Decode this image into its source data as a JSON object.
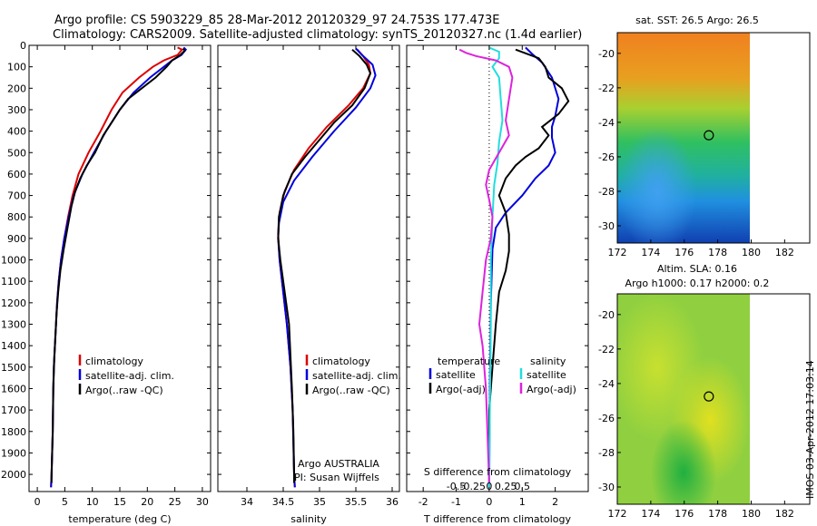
{
  "header": {
    "title_line1": "Argo profile: CS 5903229_85 28-Mar-2012 20120329_97 24.753S 177.473E",
    "title_line2": "Climatology: CARS2009. Satellite-adjusted climatology: synTS_20120327.nc (1.4d earlier)"
  },
  "colors": {
    "climatology": "#dd0000",
    "satellite": "#0000dd",
    "argo": "#000000",
    "salinity_satellite": "#22dddd",
    "salinity_argo": "#dd22dd"
  },
  "chart_data": [
    {
      "id": "temperature",
      "type": "line",
      "xlabel": "temperature (deg C)",
      "ylabel": "",
      "xlim": [
        -1.5,
        31.5
      ],
      "ylim": [
        2080,
        0
      ],
      "xticks": [
        "0",
        "5",
        "10",
        "15",
        "20",
        "25",
        "30"
      ],
      "yticks": [
        "0",
        "100",
        "200",
        "300",
        "400",
        "500",
        "600",
        "700",
        "800",
        "900",
        "1000",
        "1100",
        "1200",
        "1300",
        "1400",
        "1500",
        "1600",
        "1700",
        "1800",
        "1900",
        "2000"
      ],
      "legend": {
        "position": "center",
        "entries": [
          "climatology",
          "satellite-adj. clim.",
          "Argo(..raw -QC)"
        ]
      },
      "series": [
        {
          "name": "climatology",
          "color_key": "climatology",
          "points": [
            [
              25.5,
              10
            ],
            [
              26.3,
              20
            ],
            [
              25.5,
              45
            ],
            [
              23,
              70
            ],
            [
              21,
              100
            ],
            [
              18.5,
              150
            ],
            [
              15.5,
              220
            ],
            [
              13.5,
              300
            ],
            [
              11.5,
              400
            ],
            [
              9.3,
              500
            ],
            [
              7.5,
              600
            ],
            [
              6.4,
              700
            ],
            [
              5.6,
              800
            ],
            [
              4.9,
              900
            ],
            [
              4.3,
              1000
            ],
            [
              3.9,
              1100
            ],
            [
              3.6,
              1200
            ],
            [
              3.4,
              1300
            ],
            [
              3.2,
              1400
            ],
            [
              3,
              1500
            ],
            [
              2.9,
              1600
            ],
            [
              2.8,
              1800
            ],
            [
              2.6,
              2000
            ],
            [
              2.5,
              2060
            ]
          ]
        },
        {
          "name": "satellite-adj. clim.",
          "color_key": "satellite",
          "points": [
            [
              26.6,
              10
            ],
            [
              27,
              20
            ],
            [
              26.2,
              45
            ],
            [
              24.5,
              70
            ],
            [
              23,
              100
            ],
            [
              20.5,
              150
            ],
            [
              17.5,
              220
            ],
            [
              15,
              300
            ],
            [
              12.5,
              400
            ],
            [
              10.3,
              500
            ],
            [
              8.2,
              600
            ],
            [
              6.6,
              700
            ],
            [
              5.7,
              800
            ],
            [
              4.9,
              900
            ],
            [
              4.3,
              1000
            ],
            [
              3.9,
              1100
            ],
            [
              3.6,
              1200
            ],
            [
              3.4,
              1300
            ],
            [
              3.2,
              1400
            ],
            [
              3,
              1500
            ],
            [
              2.9,
              1600
            ],
            [
              2.8,
              1800
            ],
            [
              2.6,
              2000
            ],
            [
              2.5,
              2060
            ]
          ]
        },
        {
          "name": "Argo(..raw -QC)",
          "color_key": "argo",
          "points": [
            [
              26.5,
              15
            ],
            [
              26.8,
              25
            ],
            [
              26,
              45
            ],
            [
              24.5,
              70
            ],
            [
              23.5,
              100
            ],
            [
              21.5,
              150
            ],
            [
              19,
              200
            ],
            [
              16.5,
              250
            ],
            [
              15,
              300
            ],
            [
              13.5,
              360
            ],
            [
              12,
              420
            ],
            [
              10.5,
              500
            ],
            [
              9,
              560
            ],
            [
              7.8,
              620
            ],
            [
              6.9,
              680
            ],
            [
              6.2,
              750
            ],
            [
              5.5,
              850
            ],
            [
              4.8,
              950
            ],
            [
              4.2,
              1050
            ],
            [
              3.8,
              1150
            ],
            [
              3.5,
              1250
            ],
            [
              3.3,
              1350
            ],
            [
              3.1,
              1450
            ],
            [
              2.9,
              1600
            ],
            [
              2.8,
              1800
            ],
            [
              2.6,
              2000
            ],
            [
              2.6,
              2040
            ]
          ]
        }
      ]
    },
    {
      "id": "salinity",
      "type": "line",
      "xlabel": "salinity",
      "xlim": [
        33.6,
        36.1
      ],
      "ylim": [
        2080,
        0
      ],
      "xticks": [
        "34",
        "34.5",
        "35",
        "35.5",
        "36"
      ],
      "legend": {
        "position": "center",
        "entries": [
          "climatology",
          "satellite-adj. clim.",
          "Argo(..raw -QC)"
        ]
      },
      "annotation": [
        "Argo AUSTRALIA",
        "PI: Susan Wijffels"
      ],
      "series": [
        {
          "name": "climatology",
          "color_key": "climatology",
          "points": [
            [
              35.52,
              20
            ],
            [
              35.6,
              50
            ],
            [
              35.68,
              90
            ],
            [
              35.7,
              130
            ],
            [
              35.6,
              200
            ],
            [
              35.4,
              280
            ],
            [
              35.1,
              380
            ],
            [
              34.85,
              480
            ],
            [
              34.65,
              580
            ],
            [
              34.52,
              680
            ],
            [
              34.45,
              780
            ],
            [
              34.43,
              880
            ],
            [
              34.45,
              1000
            ],
            [
              34.5,
              1150
            ],
            [
              34.55,
              1300
            ],
            [
              34.6,
              1500
            ],
            [
              34.63,
              1700
            ],
            [
              34.65,
              2000
            ],
            [
              34.66,
              2060
            ]
          ]
        },
        {
          "name": "satellite-adj. clim.",
          "color_key": "satellite",
          "points": [
            [
              35.5,
              15
            ],
            [
              35.6,
              50
            ],
            [
              35.73,
              90
            ],
            [
              35.77,
              140
            ],
            [
              35.7,
              200
            ],
            [
              35.5,
              290
            ],
            [
              35.2,
              400
            ],
            [
              34.9,
              520
            ],
            [
              34.65,
              630
            ],
            [
              34.5,
              730
            ],
            [
              34.44,
              830
            ],
            [
              34.43,
              900
            ],
            [
              34.45,
              1000
            ],
            [
              34.5,
              1150
            ],
            [
              34.55,
              1300
            ],
            [
              34.6,
              1500
            ],
            [
              34.63,
              1700
            ],
            [
              34.65,
              2000
            ],
            [
              34.66,
              2060
            ]
          ]
        },
        {
          "name": "Argo(..raw -QC)",
          "color_key": "argo",
          "points": [
            [
              35.45,
              20
            ],
            [
              35.55,
              50
            ],
            [
              35.65,
              90
            ],
            [
              35.7,
              130
            ],
            [
              35.62,
              200
            ],
            [
              35.45,
              280
            ],
            [
              35.2,
              360
            ],
            [
              35,
              440
            ],
            [
              34.8,
              520
            ],
            [
              34.62,
              600
            ],
            [
              34.5,
              700
            ],
            [
              34.44,
              800
            ],
            [
              34.43,
              900
            ],
            [
              34.46,
              1000
            ],
            [
              34.52,
              1150
            ],
            [
              34.58,
              1300
            ],
            [
              34.6,
              1450
            ],
            [
              34.62,
              1600
            ],
            [
              34.64,
              1800
            ],
            [
              34.65,
              2000
            ],
            [
              34.65,
              2040
            ]
          ]
        }
      ]
    },
    {
      "id": "differences",
      "type": "line",
      "xlabel": "T difference from climatology",
      "xlim": [
        -2.5,
        3
      ],
      "ylim": [
        2080,
        0
      ],
      "xticks": [
        "-2",
        "-1",
        "0",
        "1",
        "2"
      ],
      "top_xlabel": "S difference from climatology",
      "top_xticks": [
        "-0.5",
        "-0.25",
        "0",
        "0.25",
        "0.5"
      ],
      "legend": {
        "position": "center",
        "headers": [
          "temperature",
          "salinity"
        ],
        "entries": [
          "satellite",
          "Argo(-adj)",
          "satellite",
          "Argo(-adj)"
        ]
      },
      "series": [
        {
          "name": "temperature satellite",
          "color_key": "satellite",
          "points": [
            [
              1.1,
              10
            ],
            [
              1.3,
              40
            ],
            [
              1.6,
              80
            ],
            [
              1.9,
              150
            ],
            [
              2.1,
              250
            ],
            [
              2,
              330
            ],
            [
              1.9,
              380
            ],
            [
              1.9,
              430
            ],
            [
              2,
              500
            ],
            [
              1.8,
              560
            ],
            [
              1.4,
              620
            ],
            [
              1,
              700
            ],
            [
              0.5,
              780
            ],
            [
              0.2,
              850
            ],
            [
              0.1,
              950
            ],
            [
              0.05,
              1200
            ],
            [
              0.02,
              1600
            ],
            [
              0,
              2060
            ]
          ]
        },
        {
          "name": "temperature Argo(-adj)",
          "color_key": "argo",
          "points": [
            [
              0.8,
              20
            ],
            [
              1.5,
              60
            ],
            [
              1.7,
              100
            ],
            [
              1.8,
              150
            ],
            [
              2.2,
              200
            ],
            [
              2.4,
              260
            ],
            [
              2.1,
              320
            ],
            [
              1.6,
              380
            ],
            [
              1.8,
              420
            ],
            [
              1.5,
              480
            ],
            [
              1.1,
              520
            ],
            [
              0.8,
              560
            ],
            [
              0.5,
              620
            ],
            [
              0.3,
              700
            ],
            [
              0.5,
              780
            ],
            [
              0.6,
              880
            ],
            [
              0.6,
              960
            ],
            [
              0.5,
              1050
            ],
            [
              0.3,
              1150
            ],
            [
              0.2,
              1300
            ],
            [
              0.1,
              1500
            ],
            [
              0,
              1700
            ],
            [
              0,
              2040
            ]
          ]
        },
        {
          "name": "salinity satellite",
          "color_key": "salinity_satellite",
          "points": [
            [
              0,
              10
            ],
            [
              0.3,
              30
            ],
            [
              0.3,
              60
            ],
            [
              0.1,
              100
            ],
            [
              0.3,
              150
            ],
            [
              0.35,
              250
            ],
            [
              0.4,
              350
            ],
            [
              0.3,
              450
            ],
            [
              0.25,
              550
            ],
            [
              0.15,
              650
            ],
            [
              0.1,
              800
            ],
            [
              0.05,
              1000
            ],
            [
              0.05,
              1300
            ],
            [
              0.02,
              1700
            ],
            [
              0,
              2060
            ]
          ]
        },
        {
          "name": "salinity Argo(-adj)",
          "color_key": "salinity_argo",
          "points": [
            [
              -0.9,
              20
            ],
            [
              -0.7,
              35
            ],
            [
              -0.4,
              50
            ],
            [
              0.2,
              70
            ],
            [
              0.6,
              100
            ],
            [
              0.7,
              150
            ],
            [
              0.6,
              250
            ],
            [
              0.5,
              350
            ],
            [
              0.6,
              420
            ],
            [
              0.3,
              500
            ],
            [
              0,
              580
            ],
            [
              -0.1,
              650
            ],
            [
              0,
              720
            ],
            [
              0.1,
              800
            ],
            [
              0.05,
              900
            ],
            [
              -0.1,
              1000
            ],
            [
              -0.2,
              1150
            ],
            [
              -0.3,
              1300
            ],
            [
              -0.2,
              1400
            ],
            [
              -0.1,
              1600
            ],
            [
              0,
              2040
            ]
          ]
        }
      ]
    },
    {
      "id": "sst_map",
      "type": "heatmap",
      "title": "sat. SST: 26.5 Argo: 26.5",
      "xlim": [
        172,
        183.5
      ],
      "ylim": [
        -31,
        -18.8
      ],
      "xticks": [
        "172",
        "174",
        "176",
        "178",
        "180",
        "182"
      ],
      "yticks": [
        "-20",
        "-22",
        "-24",
        "-26",
        "-28",
        "-30"
      ],
      "marker": [
        177.47,
        -24.75
      ]
    },
    {
      "id": "sla_map",
      "type": "heatmap",
      "title_line1": "Altim. SLA: 0.16",
      "title_line2": "Argo h1000: 0.17 h2000: 0.2",
      "xlim": [
        172,
        183.5
      ],
      "ylim": [
        -31,
        -18.8
      ],
      "xticks": [
        "172",
        "174",
        "176",
        "178",
        "180",
        "182"
      ],
      "yticks": [
        "-20",
        "-22",
        "-24",
        "-26",
        "-28",
        "-30"
      ],
      "marker": [
        177.47,
        -24.75
      ]
    }
  ],
  "footer": {
    "side_stamp": "IMOS 03-Apr-2012 17:03:14"
  }
}
